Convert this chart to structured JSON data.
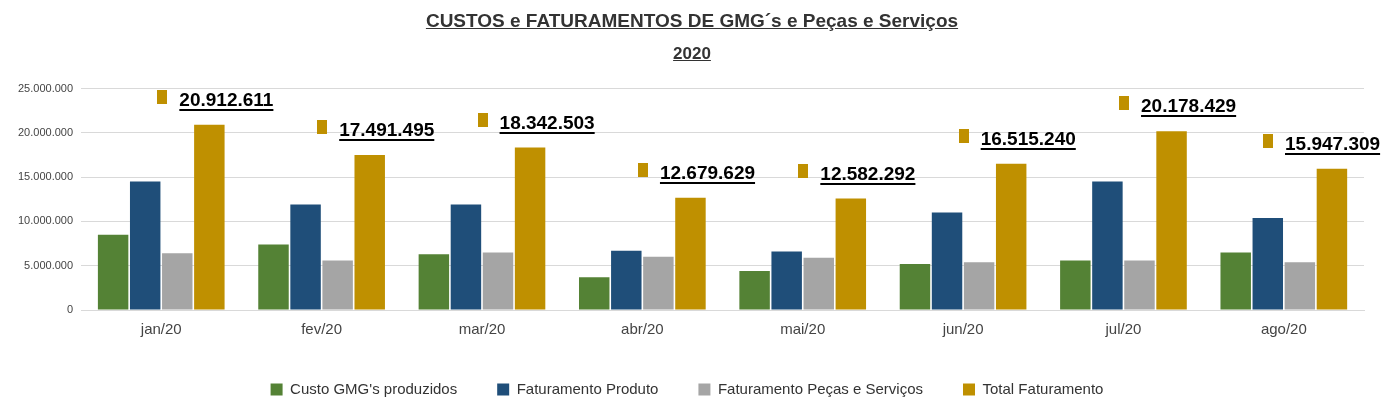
{
  "chart_data": {
    "type": "bar",
    "title": "CUSTOS e FATURAMENTOS DE GMG´s e Peças e Serviços",
    "subtitle": "2020",
    "categories": [
      "jan/20",
      "fev/20",
      "mar/20",
      "abr/20",
      "mai/20",
      "jun/20",
      "jul/20",
      "ago/20"
    ],
    "series": [
      {
        "name": "Custo GMG's produzidos",
        "color": "#548235",
        "values": [
          8500000,
          7400000,
          6300000,
          3700000,
          4400000,
          5200000,
          5600000,
          6500000
        ]
      },
      {
        "name": "Faturamento Produto",
        "color": "#1f4e79",
        "values": [
          14500000,
          11900000,
          11900000,
          6700000,
          6600000,
          11000000,
          14500000,
          10400000
        ]
      },
      {
        "name": "Faturamento Peças e Serviços",
        "color": "#a5a5a5",
        "values": [
          6400000,
          5600000,
          6500000,
          6000000,
          5900000,
          5400000,
          5600000,
          5400000
        ]
      },
      {
        "name": "Total Faturamento",
        "color": "#bf9000",
        "values": [
          20912611,
          17491495,
          18342503,
          12679629,
          12582292,
          16515240,
          20178429,
          15947309
        ],
        "value_labels": [
          "20.912.611",
          "17.491.495",
          "18.342.503",
          "12.679.629",
          "12.582.292",
          "16.515.240",
          "20.178.429",
          "15.947.309"
        ]
      }
    ],
    "ylim": [
      0,
      25000000
    ],
    "yticks": [
      {
        "value": 0,
        "label": "0"
      },
      {
        "value": 5000000,
        "label": "5.000.000"
      },
      {
        "value": 10000000,
        "label": "10.000.000"
      },
      {
        "value": 15000000,
        "label": "15.000.000"
      },
      {
        "value": 20000000,
        "label": "20.000.000"
      },
      {
        "value": 25000000,
        "label": "25.000.000"
      }
    ],
    "grid": "y",
    "legend": "bottom"
  }
}
